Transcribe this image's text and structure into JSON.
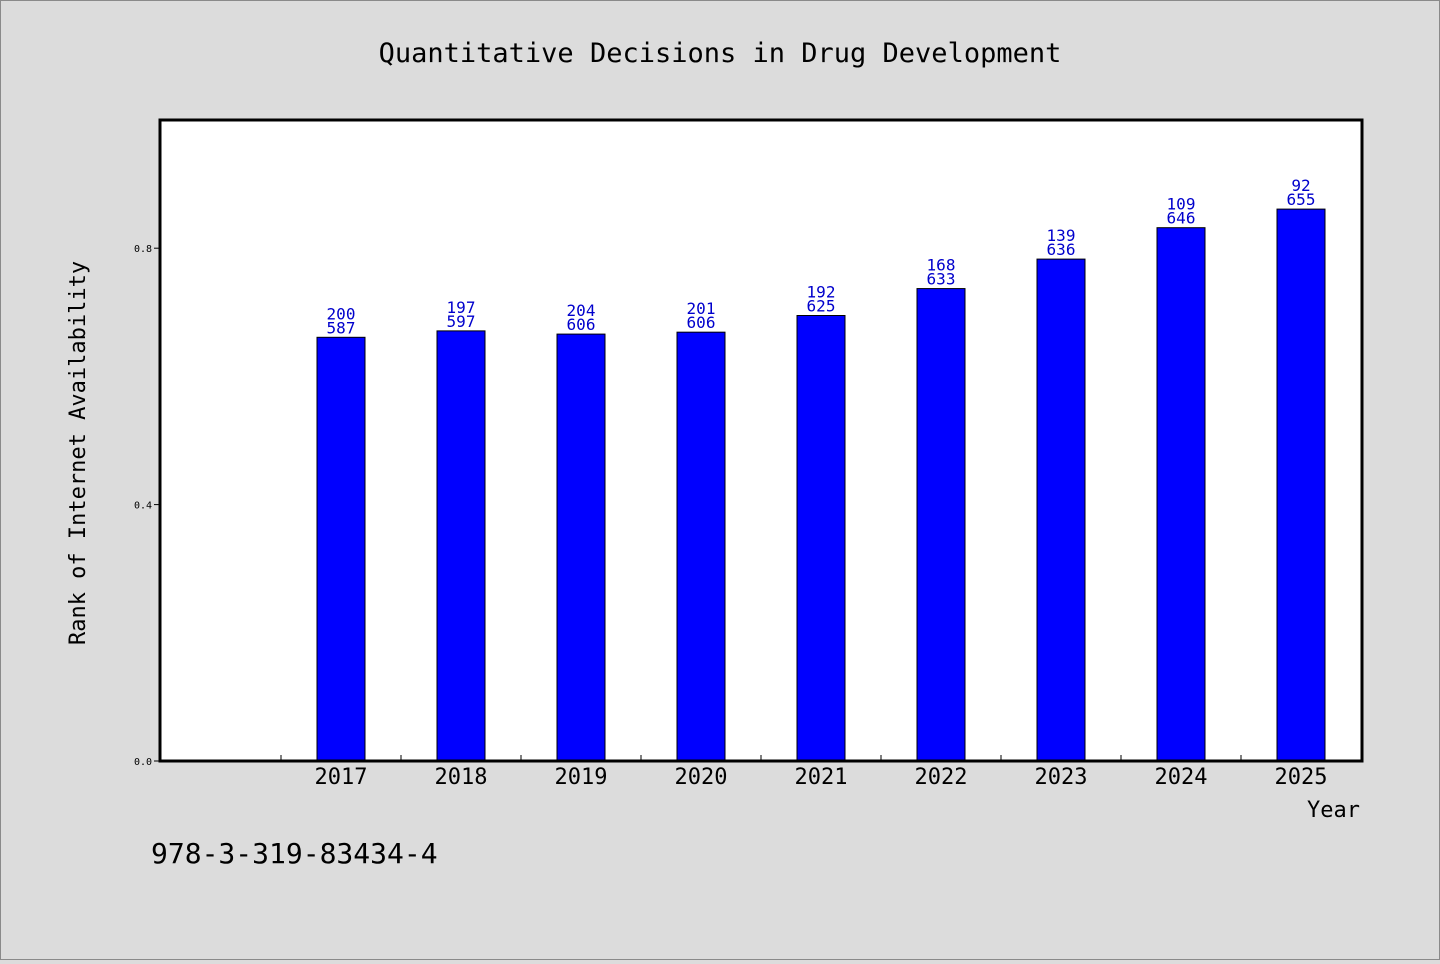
{
  "footer_text": "978-3-319-83434-4",
  "colors": {
    "background": "#dcdcdc",
    "plot_background": "#ffffff",
    "bar": "#0000ff",
    "data_label": "#0000cc"
  },
  "chart_data": {
    "type": "bar",
    "title": "Quantitative Decisions in Drug Development",
    "xlabel": "Year",
    "ylabel": "Rank of Internet Availability",
    "categories": [
      "2017",
      "2018",
      "2019",
      "2020",
      "2021",
      "2022",
      "2023",
      "2024",
      "2025"
    ],
    "values": [
      0.661,
      0.671,
      0.666,
      0.669,
      0.695,
      0.737,
      0.783,
      0.832,
      0.861
    ],
    "labels_top": [
      "200",
      "197",
      "204",
      "201",
      "192",
      "168",
      "139",
      "109",
      "92"
    ],
    "labels_bottom": [
      "587",
      "597",
      "606",
      "606",
      "625",
      "633",
      "636",
      "646",
      "655"
    ],
    "yticks": [
      0.0,
      0.4,
      0.8
    ],
    "ytick_labels": [
      "0.0",
      "0.4",
      "0.8"
    ],
    "ylim": [
      0,
      1.0
    ],
    "grid": false,
    "legend": "none"
  }
}
